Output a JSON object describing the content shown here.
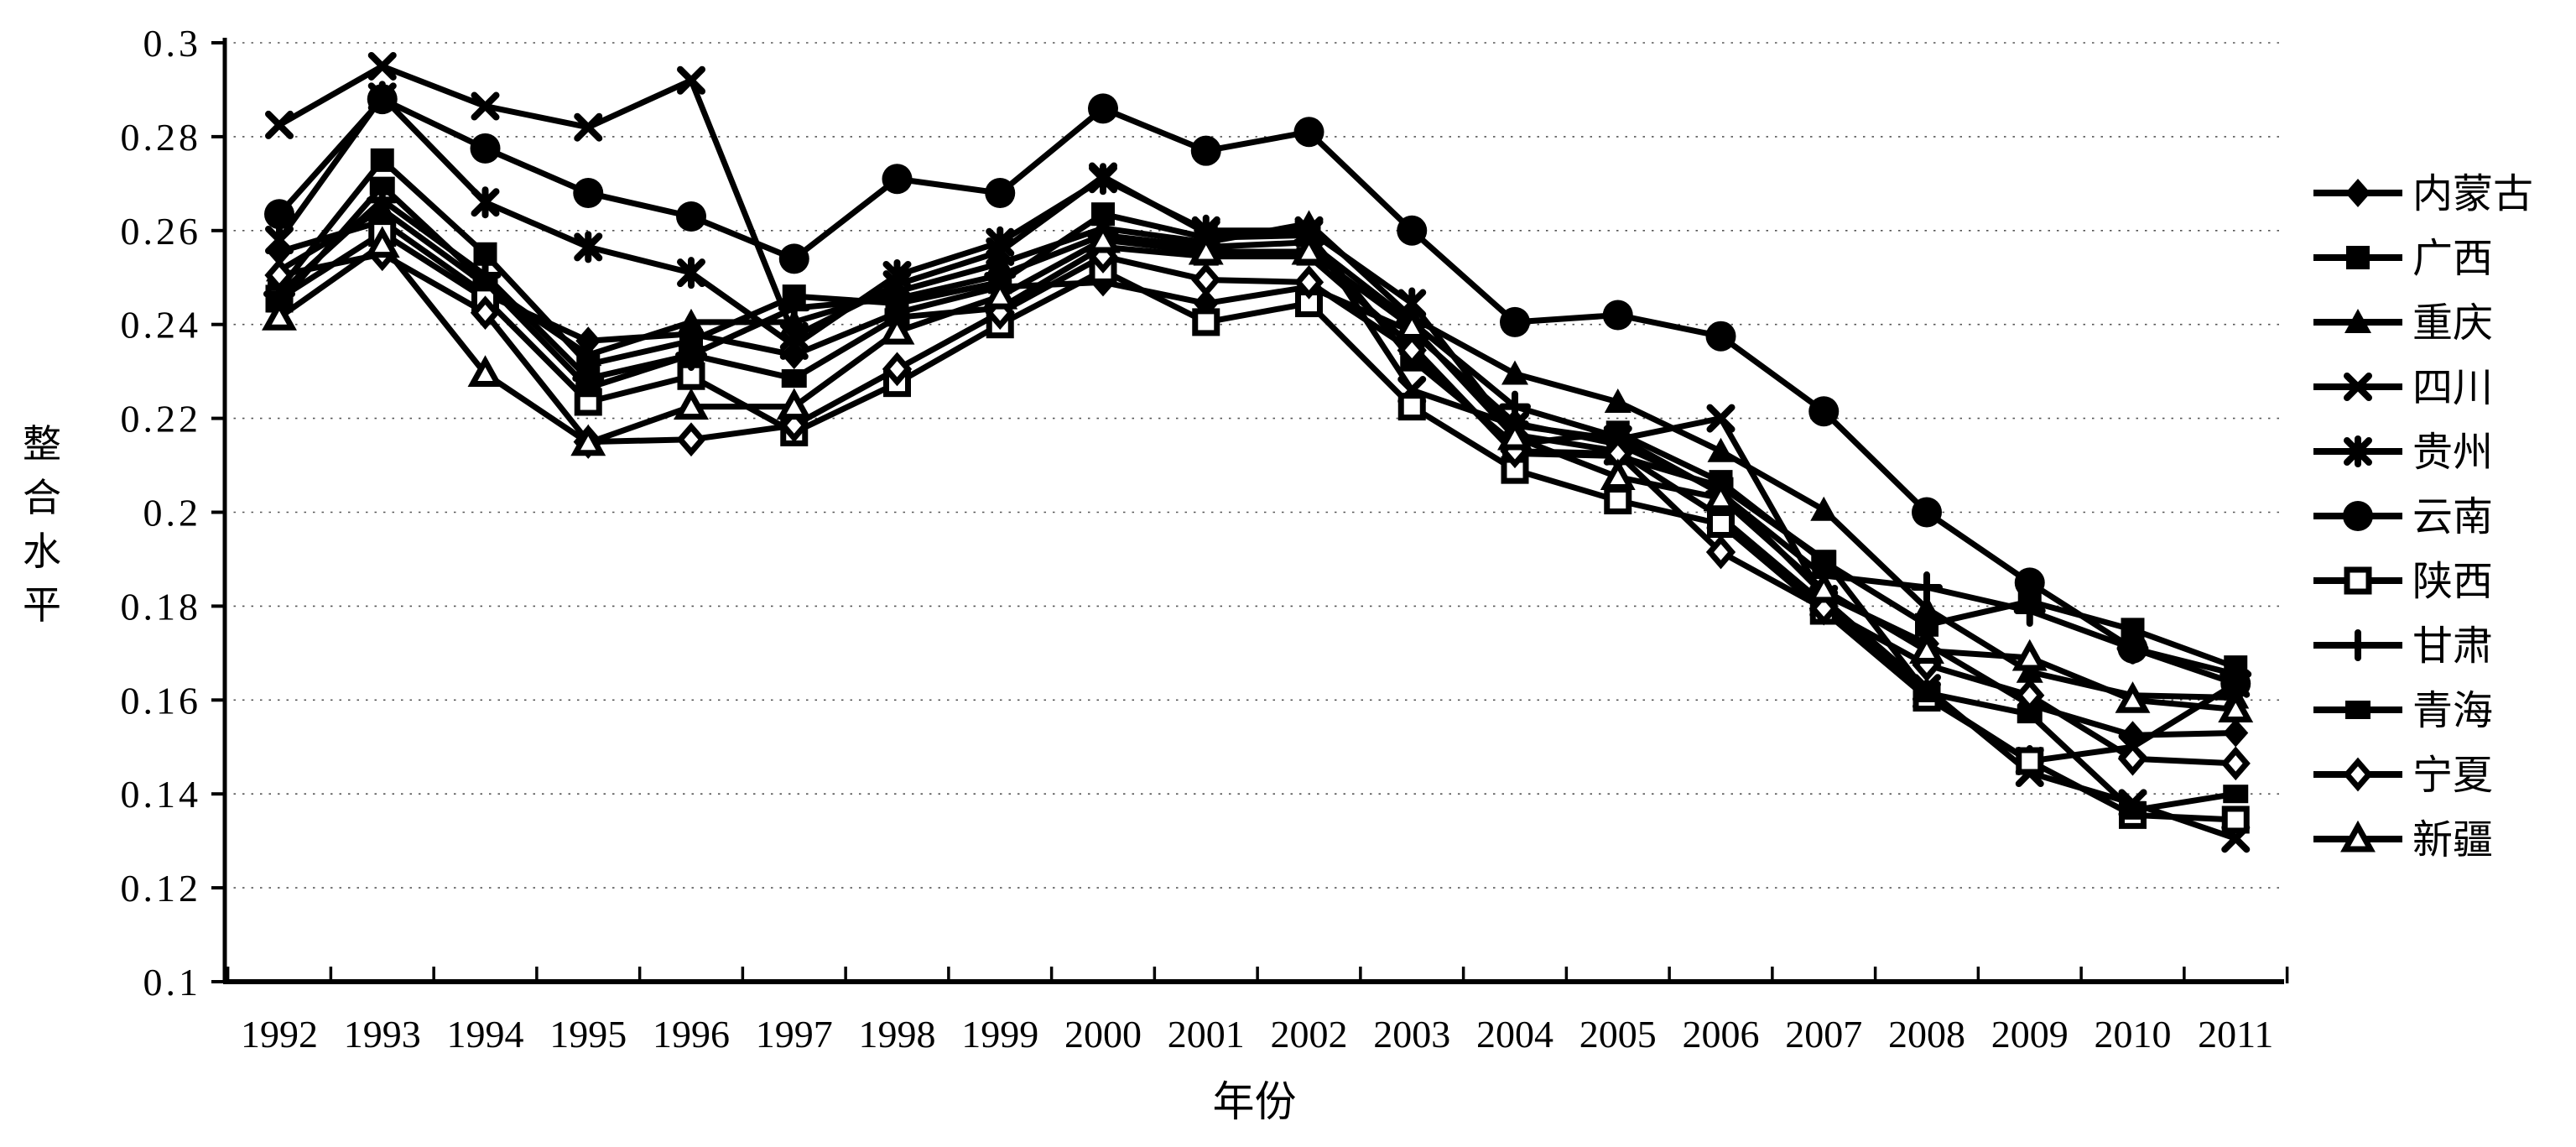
{
  "chart_data": {
    "type": "line",
    "title": "",
    "xlabel": "年份",
    "ylabel": "整合水平",
    "ylabel_chars": [
      "整",
      "合",
      "水",
      "平"
    ],
    "x": [
      1992,
      1993,
      1994,
      1995,
      1996,
      1997,
      1998,
      1999,
      2000,
      2001,
      2002,
      2003,
      2004,
      2005,
      2006,
      2007,
      2008,
      2009,
      2010,
      2011
    ],
    "ylim": [
      0.1,
      0.3
    ],
    "ytick_step": 0.02,
    "ytick_labels": [
      "0.1",
      "0.12",
      "0.14",
      "0.16",
      "0.18",
      "0.2",
      "0.22",
      "0.24",
      "0.26",
      "0.28",
      "0.3"
    ],
    "grid": "horizontal-dotted",
    "legend_position": "right",
    "line_color": "#000000",
    "background_color": "#ffffff",
    "series": [
      {
        "name": "内蒙古",
        "marker": "diamond-filled",
        "values": [
          0.2555,
          0.262,
          0.2465,
          0.2365,
          0.238,
          0.2335,
          0.2425,
          0.248,
          0.249,
          0.2445,
          0.248,
          0.2385,
          0.219,
          0.2145,
          0.2045,
          0.1825,
          0.172,
          0.159,
          0.1525,
          0.153
        ]
      },
      {
        "name": "广西",
        "marker": "square-filled",
        "values": [
          0.2475,
          0.275,
          0.255,
          0.2315,
          0.2365,
          0.246,
          0.2445,
          0.249,
          0.2635,
          0.2585,
          0.259,
          0.2325,
          0.2145,
          0.217,
          0.2065,
          0.1895,
          0.176,
          0.181,
          0.175,
          0.167
        ]
      },
      {
        "name": "重庆",
        "marker": "triangle-filled",
        "values": [
          0.2515,
          0.2645,
          0.2485,
          0.2335,
          0.2405,
          0.2405,
          0.247,
          0.253,
          0.2605,
          0.2575,
          0.2615,
          0.2415,
          0.2295,
          0.2235,
          0.213,
          0.2005,
          0.1795,
          0.166,
          0.161,
          0.1605
        ]
      },
      {
        "name": "四川",
        "marker": "x",
        "values": [
          0.2825,
          0.295,
          0.2865,
          0.282,
          0.292,
          0.2375,
          0.2485,
          0.2555,
          0.2715,
          0.2595,
          0.2595,
          0.226,
          0.2185,
          0.2155,
          0.22,
          0.1815,
          0.1625,
          0.1445,
          0.138,
          0.1305
        ]
      },
      {
        "name": "贵州",
        "marker": "asterisk",
        "values": [
          0.258,
          0.2885,
          0.266,
          0.2565,
          0.251,
          0.2355,
          0.2505,
          0.2575,
          0.271,
          0.26,
          0.26,
          0.2445,
          0.2165,
          0.213,
          0.199,
          0.1805,
          0.161,
          0.147,
          0.15,
          0.1635
        ]
      },
      {
        "name": "云南",
        "marker": "circle-filled",
        "values": [
          0.2635,
          0.288,
          0.2775,
          0.268,
          0.263,
          0.254,
          0.271,
          0.268,
          0.286,
          0.277,
          0.281,
          0.26,
          0.2405,
          0.242,
          0.2375,
          0.2215,
          0.2,
          0.185,
          0.171,
          0.1635
        ]
      },
      {
        "name": "陕西",
        "marker": "square-open",
        "values": [
          0.2455,
          0.2595,
          0.2455,
          0.2235,
          0.229,
          0.217,
          0.2275,
          0.24,
          0.2515,
          0.2405,
          0.2445,
          0.2225,
          0.209,
          0.2025,
          0.1975,
          0.179,
          0.1605,
          0.147,
          0.1355,
          0.1345
        ]
      },
      {
        "name": "甘肃",
        "marker": "plus",
        "values": [
          0.2465,
          0.2665,
          0.2505,
          0.2285,
          0.2335,
          0.2435,
          0.2455,
          0.2505,
          0.259,
          0.2565,
          0.2575,
          0.2405,
          0.2225,
          0.216,
          0.204,
          0.1865,
          0.184,
          0.179,
          0.171,
          0.1655
        ]
      },
      {
        "name": "青海",
        "marker": "rect-filled",
        "values": [
          0.2445,
          0.2695,
          0.249,
          0.2265,
          0.2335,
          0.2285,
          0.2415,
          0.2435,
          0.2565,
          0.2545,
          0.2545,
          0.2355,
          0.2125,
          0.212,
          0.2055,
          0.19,
          0.1615,
          0.157,
          0.1365,
          0.14
        ]
      },
      {
        "name": "宁夏",
        "marker": "diamond-open",
        "values": [
          0.2505,
          0.255,
          0.2425,
          0.215,
          0.2155,
          0.2185,
          0.2305,
          0.2425,
          0.2545,
          0.2495,
          0.249,
          0.2345,
          0.213,
          0.2125,
          0.1915,
          0.1795,
          0.1675,
          0.161,
          0.1475,
          0.1465
        ]
      },
      {
        "name": "新疆",
        "marker": "triangle-open",
        "values": [
          0.2415,
          0.257,
          0.2295,
          0.2148,
          0.2225,
          0.2225,
          0.2385,
          0.246,
          0.258,
          0.2555,
          0.2555,
          0.2395,
          0.216,
          0.2075,
          0.203,
          0.1835,
          0.1705,
          0.169,
          0.16,
          0.158
        ]
      }
    ]
  },
  "layout_note": "black-and-white line chart, markers per series, legend at right"
}
